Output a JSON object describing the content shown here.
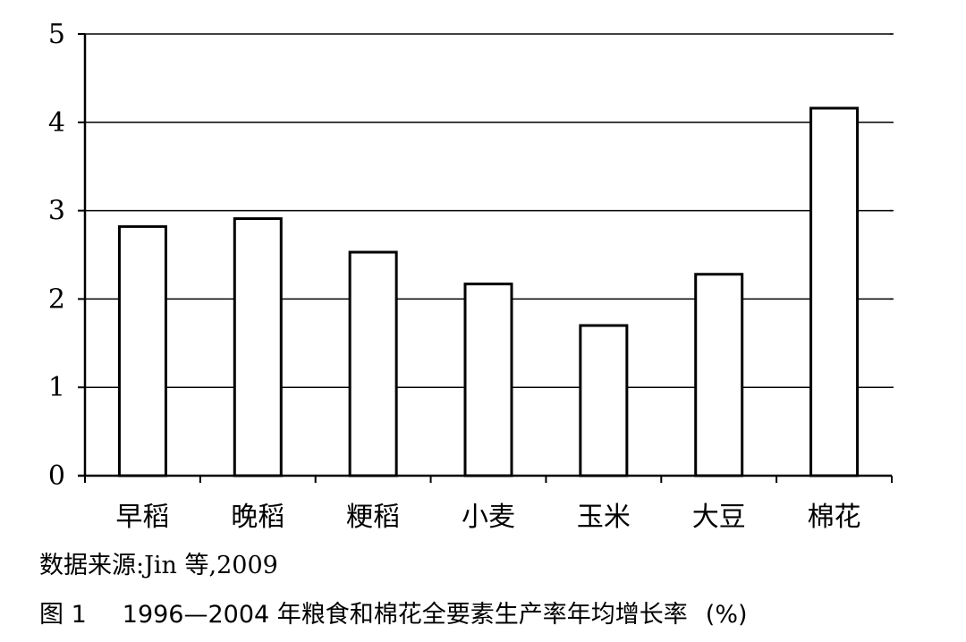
{
  "chart_data": {
    "type": "bar",
    "categories": [
      "早稻",
      "晚稻",
      "粳稻",
      "小麦",
      "玉米",
      "大豆",
      "棉花"
    ],
    "values": [
      2.82,
      2.91,
      2.53,
      2.17,
      1.7,
      2.28,
      4.16
    ],
    "ylim": [
      0,
      5
    ],
    "yticks": [
      "0",
      "1",
      "2",
      "3",
      "4",
      "5"
    ],
    "grid": true,
    "colors": {
      "bar_fill": "#ffffff",
      "bar_stroke": "#000000",
      "grid": "#000000"
    }
  },
  "source_note": "数据来源:Jin 等,2009",
  "caption": {
    "figure_no": "图 1",
    "title": "1996—2004 年粮食和棉花全要素生产率年均增长率",
    "unit": "(%)"
  }
}
